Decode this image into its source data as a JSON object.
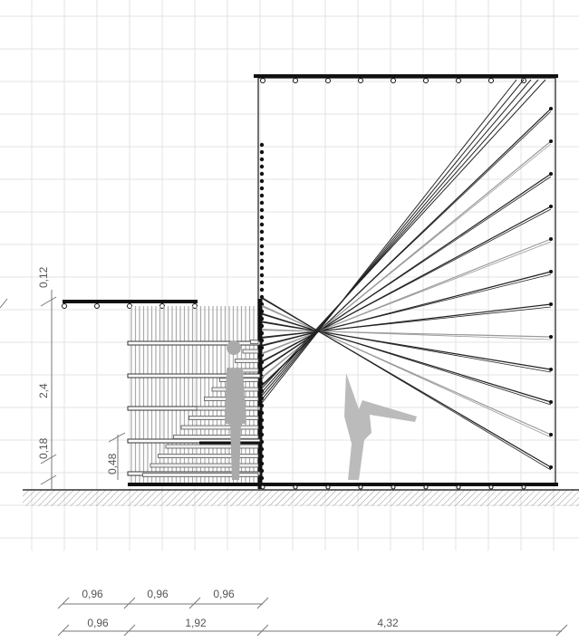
{
  "dimensions": {
    "vertical": [
      "0,12",
      "2,4",
      "0,18"
    ],
    "stair_height": "0,48",
    "top_row": [
      "0,96",
      "0,96",
      "0,96"
    ],
    "bottom_row": [
      "0,96",
      "1,92",
      "4,32"
    ]
  }
}
